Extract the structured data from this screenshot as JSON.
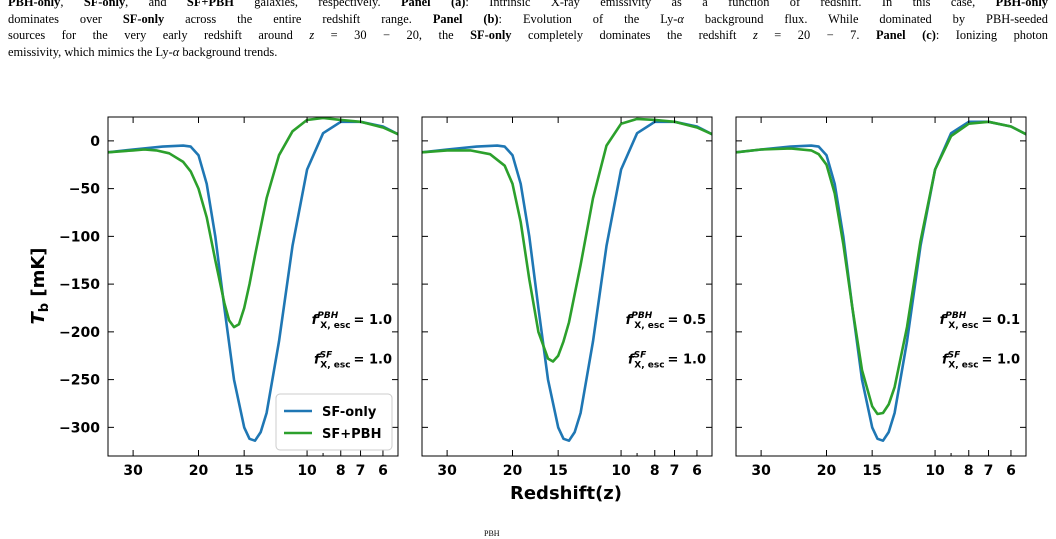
{
  "caption": {
    "lines": [
      [
        {
          "t": "PBH-only",
          "b": true
        },
        {
          "t": ", "
        },
        {
          "t": "SF-only",
          "b": true
        },
        {
          "t": ", and "
        },
        {
          "t": "SF+PBH",
          "b": true
        },
        {
          "t": " galaxies, respectively. "
        },
        {
          "t": "Panel (a)",
          "b": true
        },
        {
          "t": ": Intrinsic X-ray emissivity as a function of redshift. In this case, "
        },
        {
          "t": "PBH-only",
          "b": true
        }
      ],
      [
        {
          "t": "dominates over "
        },
        {
          "t": "SF-only",
          "b": true
        },
        {
          "t": " across the entire redshift range. "
        },
        {
          "t": "Panel (b)",
          "b": true
        },
        {
          "t": ": Evolution of the Ly-"
        },
        {
          "t": "α",
          "i": true
        },
        {
          "t": " background flux. While dominated by PBH-seeded"
        }
      ],
      [
        {
          "t": "sources for the very early redshift around "
        },
        {
          "t": "z",
          "i": true
        },
        {
          "t": " = 30 − 20, the "
        },
        {
          "t": "SF-only",
          "b": true
        },
        {
          "t": " completely dominates the redshift "
        },
        {
          "t": "z",
          "i": true
        },
        {
          "t": " = 20 − 7. "
        },
        {
          "t": "Panel (c)",
          "b": true
        },
        {
          "t": ": Ionizing photon"
        }
      ],
      [
        {
          "t": "emissivity, which mimics the Ly-"
        },
        {
          "t": "α",
          "i": true
        },
        {
          "t": " background trends."
        }
      ]
    ]
  },
  "bottom_note": "PBH",
  "colors": {
    "sf_only": "#1f77b4",
    "sf_pbh": "#2ca02c"
  },
  "chart_data": [
    {
      "type": "line",
      "panel": "left",
      "xlabel": "",
      "ylabel": "T_b [mK]",
      "x_scale": "log(1+z), inverted",
      "xlim": [
        35,
        5.4
      ],
      "ylim": [
        -330,
        25
      ],
      "x_ticks": [
        30,
        20,
        15,
        10,
        8,
        7,
        6
      ],
      "y_ticks": [
        0,
        -50,
        -100,
        -150,
        -200,
        -250,
        -300
      ],
      "annotations": {
        "pbh_label": "f",
        "pbh_sup": "PBH",
        "pbh_sub": "X, esc",
        "pbh_value": "= 1.0",
        "sf_label": "f",
        "sf_sup": "SF",
        "sf_sub": "X, esc",
        "sf_value": "= 1.0"
      },
      "legend": {
        "position": "lower-right",
        "entries": [
          "SF-only",
          "SF+PBH"
        ]
      },
      "series": [
        {
          "name": "SF-only",
          "color": "#1f77b4",
          "x": [
            35,
            30,
            25,
            22,
            21,
            20,
            19,
            18,
            17,
            16,
            15,
            14.5,
            14,
            13.5,
            13,
            12,
            11,
            10,
            9,
            8,
            7,
            6,
            5.4
          ],
          "y": [
            -12,
            -9,
            -6,
            -5,
            -6,
            -15,
            -45,
            -100,
            -175,
            -250,
            -300,
            -312,
            -314,
            -305,
            -285,
            -210,
            -110,
            -30,
            8,
            20,
            20,
            15,
            7
          ]
        },
        {
          "name": "SF+PBH",
          "color": "#2ca02c",
          "x": [
            35,
            30,
            28,
            26,
            24,
            22,
            21,
            20,
            19,
            18,
            17,
            16.5,
            16,
            15.5,
            15,
            14.5,
            14,
            13,
            12,
            11,
            10,
            9,
            8,
            7,
            6,
            5.4
          ],
          "y": [
            -12,
            -10,
            -9,
            -10,
            -13,
            -22,
            -32,
            -50,
            -80,
            -125,
            -170,
            -188,
            -195,
            -192,
            -175,
            -150,
            -120,
            -60,
            -15,
            10,
            22,
            24,
            22,
            20,
            14,
            7
          ]
        }
      ]
    },
    {
      "type": "line",
      "panel": "middle",
      "xlabel": "Redshift(z)",
      "ylabel": "",
      "x_scale": "log(1+z), inverted",
      "xlim": [
        35,
        5.4
      ],
      "ylim": [
        -330,
        25
      ],
      "x_ticks": [
        30,
        20,
        15,
        10,
        8,
        7,
        6
      ],
      "y_ticks": [],
      "annotations": {
        "pbh_label": "f",
        "pbh_sup": "PBH",
        "pbh_sub": "X, esc",
        "pbh_value": "= 0.5",
        "sf_label": "f",
        "sf_sup": "SF",
        "sf_sub": "X, esc",
        "sf_value": "= 1.0"
      },
      "series": [
        {
          "name": "SF-only",
          "color": "#1f77b4",
          "x": [
            35,
            30,
            25,
            22,
            21,
            20,
            19,
            18,
            17,
            16,
            15,
            14.5,
            14,
            13.5,
            13,
            12,
            11,
            10,
            9,
            8,
            7,
            6,
            5.4
          ],
          "y": [
            -12,
            -9,
            -6,
            -5,
            -6,
            -15,
            -45,
            -100,
            -175,
            -250,
            -300,
            -312,
            -314,
            -305,
            -285,
            -210,
            -110,
            -30,
            8,
            20,
            20,
            15,
            7
          ]
        },
        {
          "name": "SF+PBH",
          "color": "#2ca02c",
          "x": [
            35,
            30,
            26,
            23,
            21,
            20,
            19,
            18,
            17,
            16,
            15.5,
            15,
            14.5,
            14,
            13,
            12,
            11,
            10,
            9,
            8,
            7,
            6,
            5.4
          ],
          "y": [
            -12,
            -10,
            -10,
            -14,
            -26,
            -45,
            -85,
            -145,
            -200,
            -228,
            -231,
            -225,
            -210,
            -190,
            -130,
            -60,
            -5,
            18,
            23,
            22,
            20,
            14,
            7
          ]
        }
      ]
    },
    {
      "type": "line",
      "panel": "right",
      "xlabel": "",
      "ylabel": "",
      "x_scale": "log(1+z), inverted",
      "xlim": [
        35,
        5.4
      ],
      "ylim": [
        -330,
        25
      ],
      "x_ticks": [
        30,
        20,
        15,
        10,
        8,
        7,
        6
      ],
      "y_ticks": [],
      "annotations": {
        "pbh_label": "f",
        "pbh_sup": "PBH",
        "pbh_sub": "X, esc",
        "pbh_value": "= 0.1",
        "sf_label": "f",
        "sf_sup": "SF",
        "sf_sub": "X, esc",
        "sf_value": "= 1.0"
      },
      "series": [
        {
          "name": "SF-only",
          "color": "#1f77b4",
          "x": [
            35,
            30,
            25,
            22,
            21,
            20,
            19,
            18,
            17,
            16,
            15,
            14.5,
            14,
            13.5,
            13,
            12,
            11,
            10,
            9,
            8,
            7,
            6,
            5.4
          ],
          "y": [
            -12,
            -9,
            -6,
            -5,
            -6,
            -15,
            -45,
            -100,
            -175,
            -250,
            -300,
            -312,
            -314,
            -305,
            -285,
            -210,
            -110,
            -30,
            8,
            20,
            20,
            15,
            7
          ]
        },
        {
          "name": "SF+PBH",
          "color": "#2ca02c",
          "x": [
            35,
            30,
            25,
            22,
            21,
            20,
            19,
            18,
            17,
            16,
            15,
            14.5,
            14,
            13.5,
            13,
            12,
            11,
            10,
            9,
            8,
            7,
            6,
            5.4
          ],
          "y": [
            -12,
            -9,
            -8,
            -10,
            -14,
            -25,
            -55,
            -108,
            -175,
            -240,
            -278,
            -286,
            -285,
            -276,
            -258,
            -195,
            -105,
            -30,
            5,
            18,
            20,
            15,
            7
          ]
        }
      ]
    }
  ]
}
